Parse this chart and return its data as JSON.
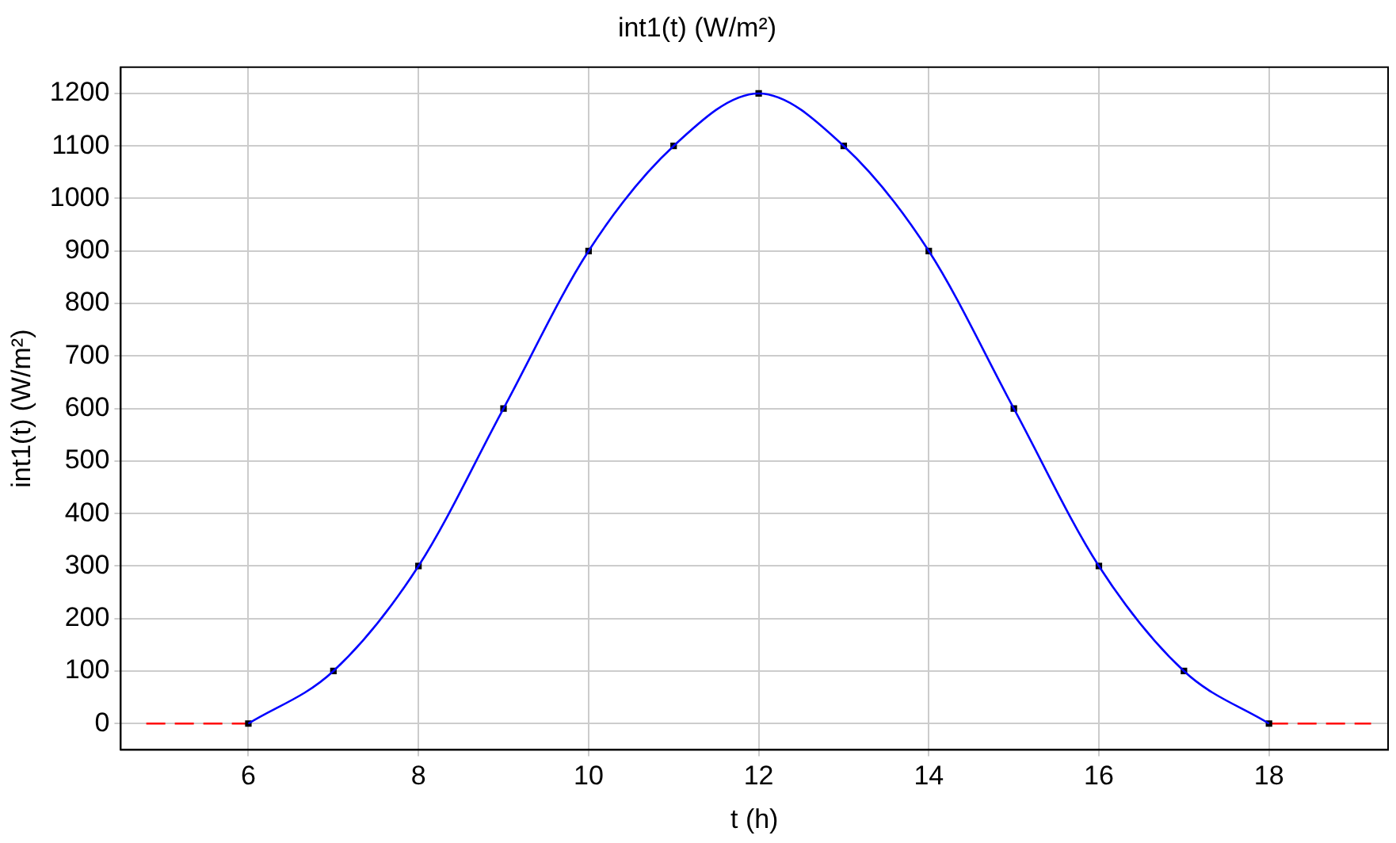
{
  "chart_data": {
    "type": "line",
    "title": "int1(t) (W/m²)",
    "xlabel": "t (h)",
    "ylabel": "int1(t) (W/m²)",
    "xlim": [
      4.5,
      19.4
    ],
    "xticks": [
      6,
      8,
      10,
      12,
      14,
      16,
      18
    ],
    "ylim": [
      -50,
      1250
    ],
    "yticks": [
      0,
      100,
      200,
      300,
      400,
      500,
      600,
      700,
      800,
      900,
      1000,
      1100,
      1200
    ],
    "grid": true,
    "legend": false,
    "series": [
      {
        "type": "line",
        "color": "#0000ff",
        "marker": "none",
        "line_style": "solid",
        "x": [
          6,
          7,
          8,
          9,
          10,
          11,
          12,
          13,
          14,
          15,
          16,
          17,
          18
        ],
        "values": [
          0,
          100,
          300,
          600,
          900,
          1100,
          1200,
          1100,
          900,
          600,
          300,
          100,
          0
        ]
      },
      {
        "type": "scatter",
        "color": "#000000",
        "marker": "square",
        "x": [
          6,
          7,
          8,
          9,
          10,
          11,
          12,
          13,
          14,
          15,
          16,
          17,
          18
        ],
        "values": [
          0,
          100,
          300,
          600,
          900,
          1100,
          1200,
          1100,
          900,
          600,
          300,
          100,
          0
        ]
      },
      {
        "type": "line",
        "color": "#ff0000",
        "marker": "none",
        "line_style": "dashed",
        "x": [
          4.8,
          6
        ],
        "values": [
          0,
          0
        ]
      },
      {
        "type": "line",
        "color": "#ff0000",
        "marker": "none",
        "line_style": "dashed",
        "x": [
          18,
          19.2
        ],
        "values": [
          0,
          0
        ]
      }
    ]
  }
}
